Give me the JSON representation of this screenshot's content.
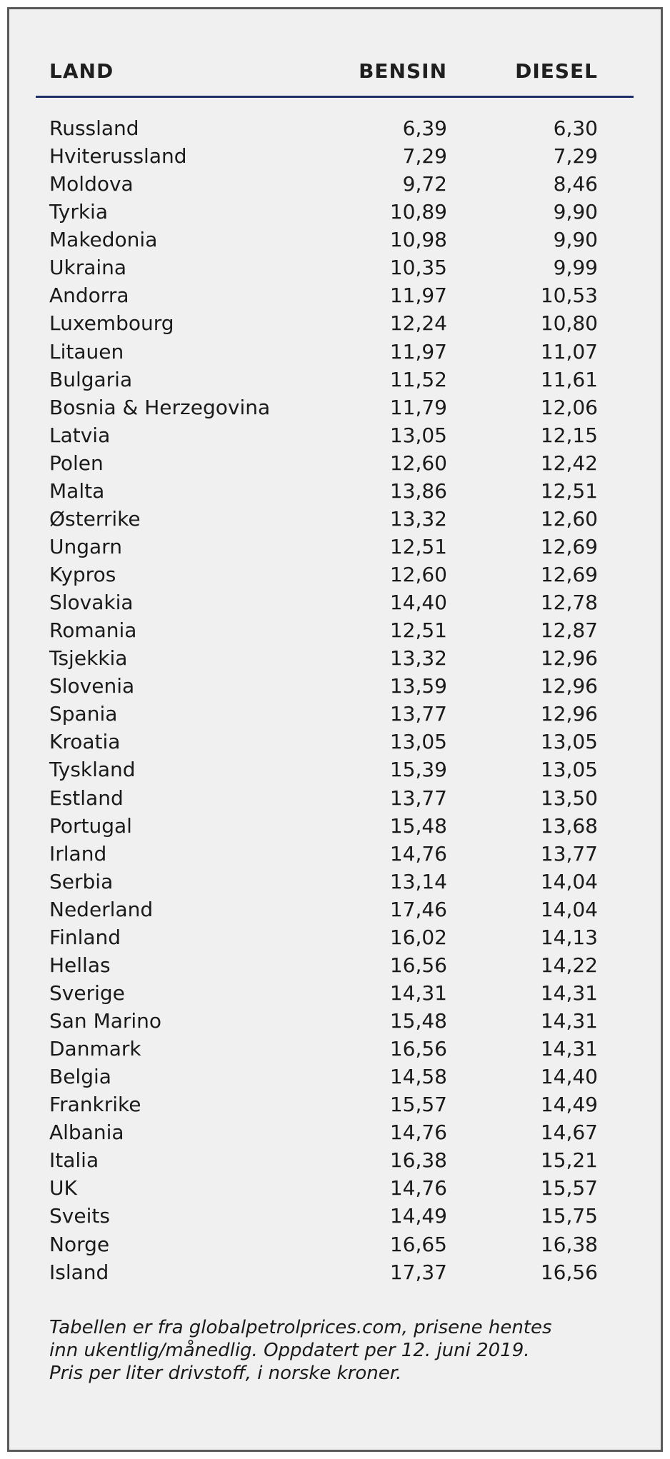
{
  "table": {
    "headers": {
      "land": "LAND",
      "bensin": "BENSIN",
      "diesel": "DIESEL"
    },
    "rows": [
      {
        "land": "Russland",
        "bensin": "6,39",
        "diesel": "6,30"
      },
      {
        "land": "Hviterussland",
        "bensin": "7,29",
        "diesel": "7,29"
      },
      {
        "land": "Moldova",
        "bensin": "9,72",
        "diesel": "8,46"
      },
      {
        "land": "Tyrkia",
        "bensin": "10,89",
        "diesel": "9,90"
      },
      {
        "land": "Makedonia",
        "bensin": "10,98",
        "diesel": "9,90"
      },
      {
        "land": "Ukraina",
        "bensin": "10,35",
        "diesel": "9,99"
      },
      {
        "land": "Andorra",
        "bensin": "11,97",
        "diesel": "10,53"
      },
      {
        "land": "Luxembourg",
        "bensin": "12,24",
        "diesel": "10,80"
      },
      {
        "land": "Litauen",
        "bensin": "11,97",
        "diesel": "11,07"
      },
      {
        "land": "Bulgaria",
        "bensin": "11,52",
        "diesel": "11,61"
      },
      {
        "land": "Bosnia & Herzegovina",
        "bensin": "11,79",
        "diesel": "12,06"
      },
      {
        "land": "Latvia",
        "bensin": "13,05",
        "diesel": "12,15"
      },
      {
        "land": "Polen",
        "bensin": "12,60",
        "diesel": "12,42"
      },
      {
        "land": "Malta",
        "bensin": "13,86",
        "diesel": "12,51"
      },
      {
        "land": "Østerrike",
        "bensin": "13,32",
        "diesel": "12,60"
      },
      {
        "land": "Ungarn",
        "bensin": "12,51",
        "diesel": "12,69"
      },
      {
        "land": "Kypros",
        "bensin": "12,60",
        "diesel": "12,69"
      },
      {
        "land": "Slovakia",
        "bensin": "14,40",
        "diesel": "12,78"
      },
      {
        "land": "Romania",
        "bensin": "12,51",
        "diesel": "12,87"
      },
      {
        "land": "Tsjekkia",
        "bensin": "13,32",
        "diesel": "12,96"
      },
      {
        "land": "Slovenia",
        "bensin": "13,59",
        "diesel": "12,96"
      },
      {
        "land": "Spania",
        "bensin": "13,77",
        "diesel": "12,96"
      },
      {
        "land": "Kroatia",
        "bensin": "13,05",
        "diesel": "13,05"
      },
      {
        "land": "Tyskland",
        "bensin": "15,39",
        "diesel": "13,05"
      },
      {
        "land": "Estland",
        "bensin": "13,77",
        "diesel": "13,50"
      },
      {
        "land": "Portugal",
        "bensin": "15,48",
        "diesel": "13,68"
      },
      {
        "land": "Irland",
        "bensin": "14,76",
        "diesel": "13,77"
      },
      {
        "land": "Serbia",
        "bensin": "13,14",
        "diesel": "14,04"
      },
      {
        "land": "Nederland",
        "bensin": "17,46",
        "diesel": "14,04"
      },
      {
        "land": "Finland",
        "bensin": "16,02",
        "diesel": "14,13"
      },
      {
        "land": "Hellas",
        "bensin": "16,56",
        "diesel": "14,22"
      },
      {
        "land": "Sverige",
        "bensin": "14,31",
        "diesel": "14,31"
      },
      {
        "land": "San Marino",
        "bensin": "15,48",
        "diesel": "14,31"
      },
      {
        "land": "Danmark",
        "bensin": "16,56",
        "diesel": "14,31"
      },
      {
        "land": "Belgia",
        "bensin": "14,58",
        "diesel": "14,40"
      },
      {
        "land": "Frankrike",
        "bensin": "15,57",
        "diesel": "14,49"
      },
      {
        "land": "Albania",
        "bensin": "14,76",
        "diesel": "14,67"
      },
      {
        "land": "Italia",
        "bensin": "16,38",
        "diesel": "15,21"
      },
      {
        "land": "UK",
        "bensin": "14,76",
        "diesel": "15,57"
      },
      {
        "land": "Sveits",
        "bensin": "14,49",
        "diesel": "15,75"
      },
      {
        "land": "Norge",
        "bensin": "16,65",
        "diesel": "16,38"
      },
      {
        "land": "Island",
        "bensin": "17,37",
        "diesel": "16,56"
      }
    ]
  },
  "footnote": {
    "lines": [
      "Tabellen er fra globalpetrolprices.com, prisene hentes",
      "inn ukentlig/månedlig. Oppdatert per 12. juni 2019.",
      "Pris per liter drivstoff, i norske kroner."
    ]
  },
  "colors": {
    "background": "#f0f0f0",
    "border": "#5a5a5a",
    "header_rule": "#1d2f66",
    "text": "#1a1a1a"
  }
}
